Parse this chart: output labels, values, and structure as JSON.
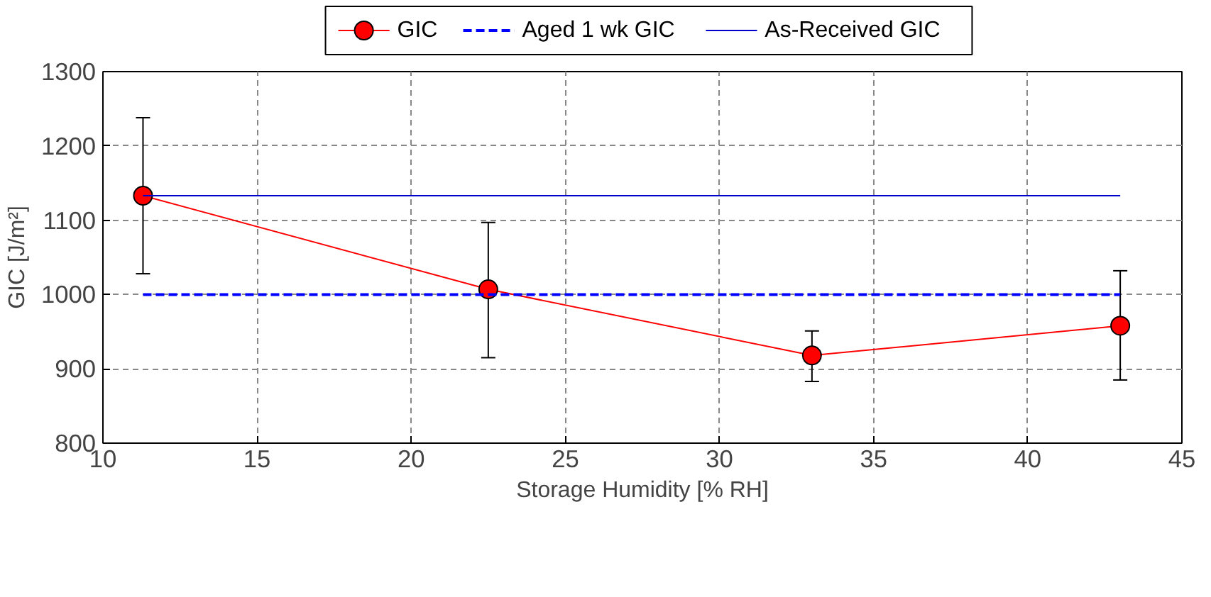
{
  "chart_data": {
    "type": "line",
    "xlabel": "Storage Humidity [% RH]",
    "ylabel": "GIC [J/m²]",
    "x": [
      11.3,
      22.5,
      33,
      43
    ],
    "series": [
      {
        "name": "GIC",
        "color": "#ff0000",
        "values": [
          1133,
          1007,
          918,
          958
        ],
        "errors": [
          [
            1028,
            1238
          ],
          [
            915,
            1097
          ],
          [
            883,
            951
          ],
          [
            885,
            1032
          ]
        ],
        "marker": "circle",
        "line_style": "solid"
      },
      {
        "name": "Aged 1 wk GIC",
        "color": "#0000ff",
        "values": [
          1000,
          1000,
          1000,
          1000
        ],
        "marker": "none",
        "line_style": "dashed"
      },
      {
        "name": "As-Received GIC",
        "color": "#0000cc",
        "values": [
          1133,
          1133,
          1133,
          1133
        ],
        "marker": "none",
        "line_style": "solid"
      }
    ],
    "xlim": [
      10,
      45
    ],
    "xticks": [
      10,
      15,
      20,
      25,
      30,
      35,
      40,
      45
    ],
    "ylim": [
      800,
      1300
    ],
    "yticks": [
      800,
      900,
      1000,
      1100,
      1200,
      1300
    ],
    "grid": true,
    "legend": "top"
  }
}
